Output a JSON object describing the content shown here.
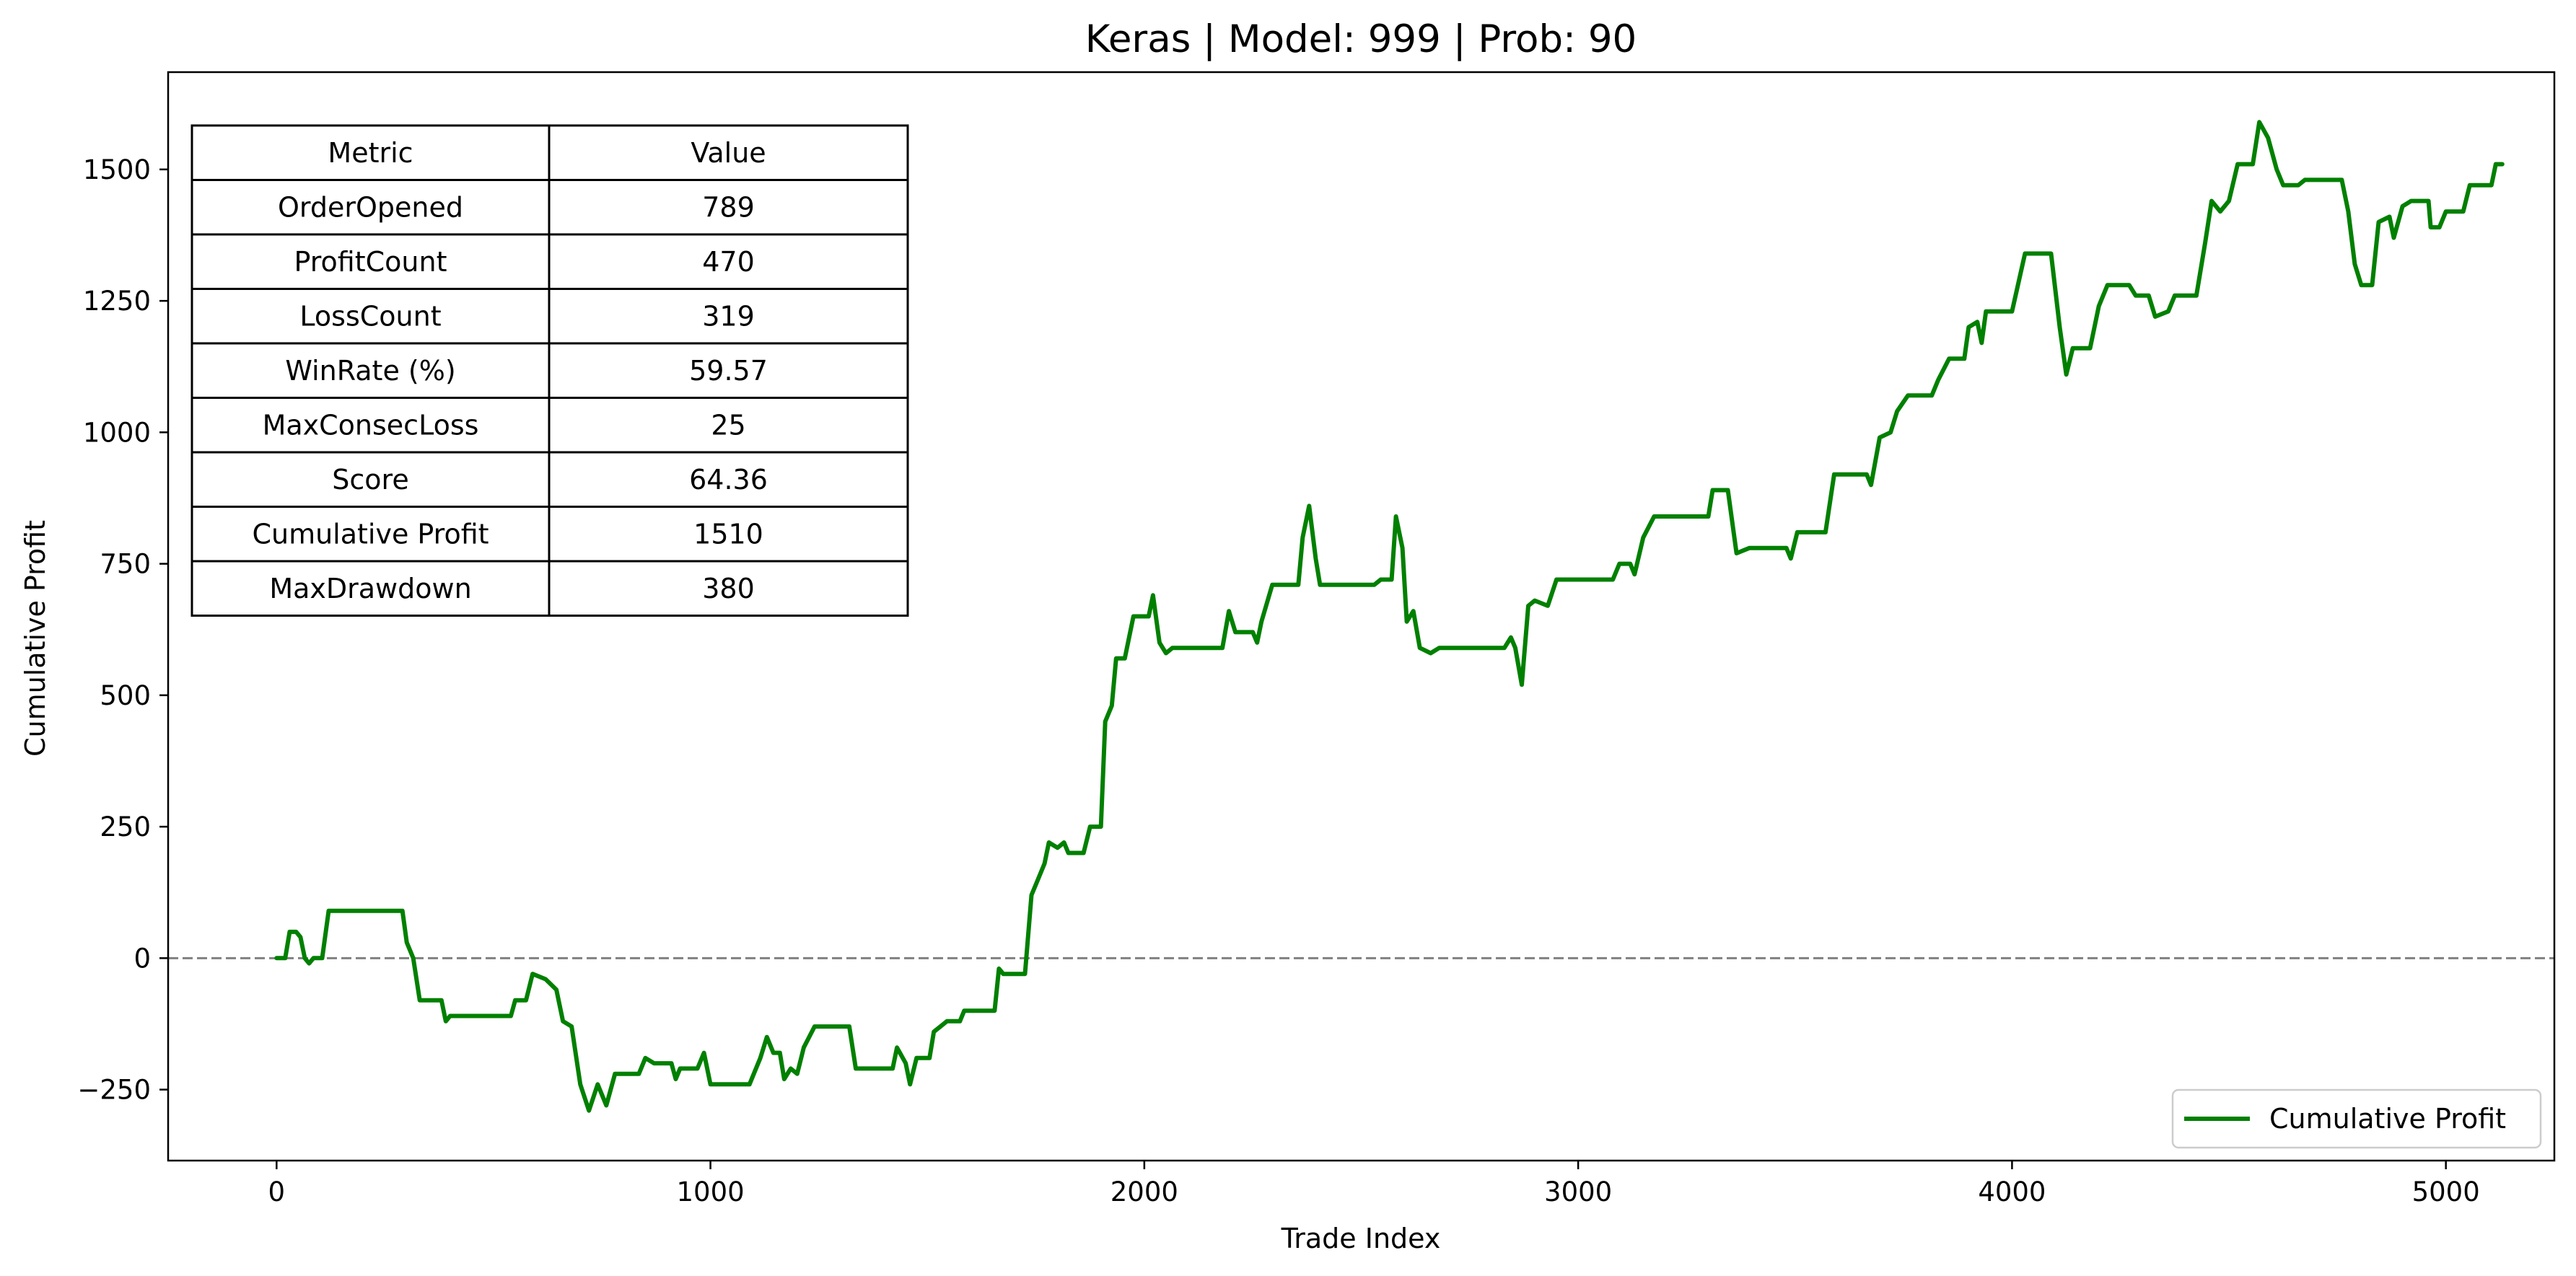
{
  "chart_data": {
    "type": "line",
    "title": "Keras | Model: 999 | Prob: 90",
    "xlabel": "Trade Index",
    "ylabel": "Cumulative Profit",
    "xlim": [
      -250,
      5250
    ],
    "ylim": [
      -385,
      1685
    ],
    "x_ticks": [
      0,
      1000,
      2000,
      3000,
      4000,
      5000
    ],
    "y_ticks": [
      -250,
      0,
      250,
      500,
      750,
      1000,
      1250,
      1500
    ],
    "x_tick_labels": [
      "0",
      "1000",
      "2000",
      "3000",
      "4000",
      "5000"
    ],
    "y_tick_labels": [
      "−250",
      "0",
      "250",
      "500",
      "750",
      "1000",
      "1250",
      "1500"
    ],
    "grid": false,
    "legend": "bottom-right",
    "reference_line": {
      "y": 0,
      "style": "dashed",
      "color": "#808080"
    },
    "series": [
      {
        "name": "Cumulative Profit",
        "color": "#008000",
        "points": [
          [
            0,
            0
          ],
          [
            20,
            0
          ],
          [
            30,
            50
          ],
          [
            45,
            50
          ],
          [
            55,
            40
          ],
          [
            65,
            0
          ],
          [
            75,
            -10
          ],
          [
            85,
            0
          ],
          [
            105,
            0
          ],
          [
            120,
            90
          ],
          [
            290,
            90
          ],
          [
            300,
            30
          ],
          [
            315,
            0
          ],
          [
            330,
            -80
          ],
          [
            380,
            -80
          ],
          [
            390,
            -120
          ],
          [
            400,
            -110
          ],
          [
            540,
            -110
          ],
          [
            550,
            -80
          ],
          [
            575,
            -80
          ],
          [
            590,
            -30
          ],
          [
            620,
            -40
          ],
          [
            645,
            -60
          ],
          [
            660,
            -120
          ],
          [
            680,
            -130
          ],
          [
            700,
            -240
          ],
          [
            720,
            -290
          ],
          [
            740,
            -240
          ],
          [
            760,
            -280
          ],
          [
            780,
            -220
          ],
          [
            835,
            -220
          ],
          [
            850,
            -190
          ],
          [
            870,
            -200
          ],
          [
            910,
            -200
          ],
          [
            920,
            -230
          ],
          [
            930,
            -210
          ],
          [
            970,
            -210
          ],
          [
            985,
            -180
          ],
          [
            1000,
            -240
          ],
          [
            1090,
            -240
          ],
          [
            1100,
            -220
          ],
          [
            1115,
            -190
          ],
          [
            1130,
            -150
          ],
          [
            1145,
            -180
          ],
          [
            1160,
            -180
          ],
          [
            1170,
            -230
          ],
          [
            1185,
            -210
          ],
          [
            1200,
            -220
          ],
          [
            1215,
            -170
          ],
          [
            1240,
            -130
          ],
          [
            1320,
            -130
          ],
          [
            1335,
            -210
          ],
          [
            1420,
            -210
          ],
          [
            1430,
            -170
          ],
          [
            1450,
            -200
          ],
          [
            1460,
            -240
          ],
          [
            1475,
            -190
          ],
          [
            1505,
            -190
          ],
          [
            1515,
            -140
          ],
          [
            1530,
            -130
          ],
          [
            1545,
            -120
          ],
          [
            1575,
            -120
          ],
          [
            1585,
            -100
          ],
          [
            1655,
            -100
          ],
          [
            1665,
            -20
          ],
          [
            1675,
            -30
          ],
          [
            1725,
            -30
          ],
          [
            1740,
            120
          ],
          [
            1755,
            150
          ],
          [
            1770,
            180
          ],
          [
            1780,
            220
          ],
          [
            1800,
            210
          ],
          [
            1815,
            220
          ],
          [
            1825,
            200
          ],
          [
            1860,
            200
          ],
          [
            1875,
            250
          ],
          [
            1900,
            250
          ],
          [
            1910,
            450
          ],
          [
            1925,
            480
          ],
          [
            1935,
            570
          ],
          [
            1955,
            570
          ],
          [
            1975,
            650
          ],
          [
            2010,
            650
          ],
          [
            2020,
            690
          ],
          [
            2035,
            600
          ],
          [
            2050,
            580
          ],
          [
            2065,
            590
          ],
          [
            2180,
            590
          ],
          [
            2195,
            660
          ],
          [
            2210,
            620
          ],
          [
            2250,
            620
          ],
          [
            2260,
            600
          ],
          [
            2270,
            640
          ],
          [
            2295,
            710
          ],
          [
            2355,
            710
          ],
          [
            2365,
            800
          ],
          [
            2380,
            860
          ],
          [
            2395,
            760
          ],
          [
            2405,
            710
          ],
          [
            2530,
            710
          ],
          [
            2545,
            720
          ],
          [
            2570,
            720
          ],
          [
            2580,
            840
          ],
          [
            2595,
            780
          ],
          [
            2605,
            640
          ],
          [
            2620,
            660
          ],
          [
            2635,
            590
          ],
          [
            2660,
            580
          ],
          [
            2680,
            590
          ],
          [
            2830,
            590
          ],
          [
            2845,
            610
          ],
          [
            2855,
            590
          ],
          [
            2870,
            520
          ],
          [
            2885,
            670
          ],
          [
            2900,
            680
          ],
          [
            2930,
            670
          ],
          [
            2950,
            720
          ],
          [
            3080,
            720
          ],
          [
            3095,
            750
          ],
          [
            3120,
            750
          ],
          [
            3130,
            730
          ],
          [
            3150,
            800
          ],
          [
            3175,
            840
          ],
          [
            3300,
            840
          ],
          [
            3310,
            890
          ],
          [
            3345,
            890
          ],
          [
            3365,
            770
          ],
          [
            3395,
            780
          ],
          [
            3480,
            780
          ],
          [
            3490,
            760
          ],
          [
            3505,
            810
          ],
          [
            3570,
            810
          ],
          [
            3590,
            920
          ],
          [
            3665,
            920
          ],
          [
            3675,
            900
          ],
          [
            3695,
            990
          ],
          [
            3720,
            1000
          ],
          [
            3735,
            1040
          ],
          [
            3760,
            1070
          ],
          [
            3815,
            1070
          ],
          [
            3830,
            1100
          ],
          [
            3855,
            1140
          ],
          [
            3890,
            1140
          ],
          [
            3900,
            1200
          ],
          [
            3920,
            1210
          ],
          [
            3930,
            1170
          ],
          [
            3940,
            1230
          ],
          [
            4000,
            1230
          ],
          [
            4030,
            1340
          ],
          [
            4090,
            1340
          ],
          [
            4110,
            1200
          ],
          [
            4125,
            1110
          ],
          [
            4140,
            1160
          ],
          [
            4180,
            1160
          ],
          [
            4200,
            1240
          ],
          [
            4220,
            1280
          ],
          [
            4270,
            1280
          ],
          [
            4285,
            1260
          ],
          [
            4315,
            1260
          ],
          [
            4330,
            1220
          ],
          [
            4360,
            1230
          ],
          [
            4375,
            1260
          ],
          [
            4425,
            1260
          ],
          [
            4445,
            1360
          ],
          [
            4460,
            1440
          ],
          [
            4480,
            1420
          ],
          [
            4500,
            1440
          ],
          [
            4520,
            1510
          ],
          [
            4555,
            1510
          ],
          [
            4570,
            1590
          ],
          [
            4590,
            1560
          ],
          [
            4610,
            1500
          ],
          [
            4625,
            1470
          ],
          [
            4660,
            1470
          ],
          [
            4675,
            1480
          ],
          [
            4760,
            1480
          ],
          [
            4775,
            1420
          ],
          [
            4790,
            1320
          ],
          [
            4805,
            1280
          ],
          [
            4830,
            1280
          ],
          [
            4845,
            1400
          ],
          [
            4870,
            1410
          ],
          [
            4880,
            1370
          ],
          [
            4900,
            1430
          ],
          [
            4920,
            1440
          ],
          [
            4960,
            1440
          ],
          [
            4965,
            1390
          ],
          [
            4985,
            1390
          ],
          [
            5000,
            1420
          ],
          [
            5040,
            1420
          ],
          [
            5055,
            1470
          ],
          [
            5105,
            1470
          ],
          [
            5115,
            1510
          ],
          [
            5130,
            1510
          ]
        ]
      }
    ],
    "table": {
      "headers": [
        "Metric",
        "Value"
      ],
      "rows": [
        [
          "OrderOpened",
          "789"
        ],
        [
          "ProfitCount",
          "470"
        ],
        [
          "LossCount",
          "319"
        ],
        [
          "WinRate (%)",
          "59.57"
        ],
        [
          "MaxConsecLoss",
          "25"
        ],
        [
          "Score",
          "64.36"
        ],
        [
          "Cumulative Profit",
          "1510"
        ],
        [
          "MaxDrawdown",
          "380"
        ]
      ]
    }
  }
}
